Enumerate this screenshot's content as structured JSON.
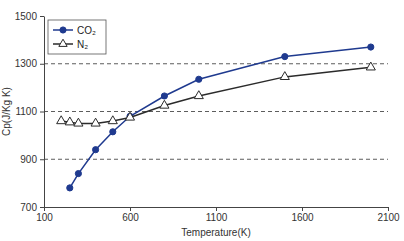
{
  "chart_data": {
    "type": "line",
    "x_label": "Temperature(K)",
    "y_label": "Cp(J/Kg K)",
    "x": [
      200,
      250,
      300,
      400,
      500,
      600,
      800,
      1000,
      1500,
      2000
    ],
    "series": [
      {
        "name": "CO₂",
        "color": "#1f3a8f",
        "marker": "circle",
        "values": [
          null,
          780,
          840,
          940,
          1015,
          1080,
          1165,
          1235,
          1330,
          1370
        ]
      },
      {
        "name": "N₂",
        "color": "#2b2b2b",
        "marker": "triangle-open",
        "values": [
          1060,
          1055,
          1050,
          1050,
          1060,
          1075,
          1125,
          1165,
          1245,
          1285
        ]
      }
    ],
    "xlim": [
      100,
      2100
    ],
    "xticks": [
      100,
      600,
      1100,
      1600,
      2100
    ],
    "ylim": [
      700,
      1500
    ],
    "yticks": [
      700,
      900,
      1100,
      1300,
      1500
    ],
    "grid": true,
    "legend": "top-left"
  }
}
